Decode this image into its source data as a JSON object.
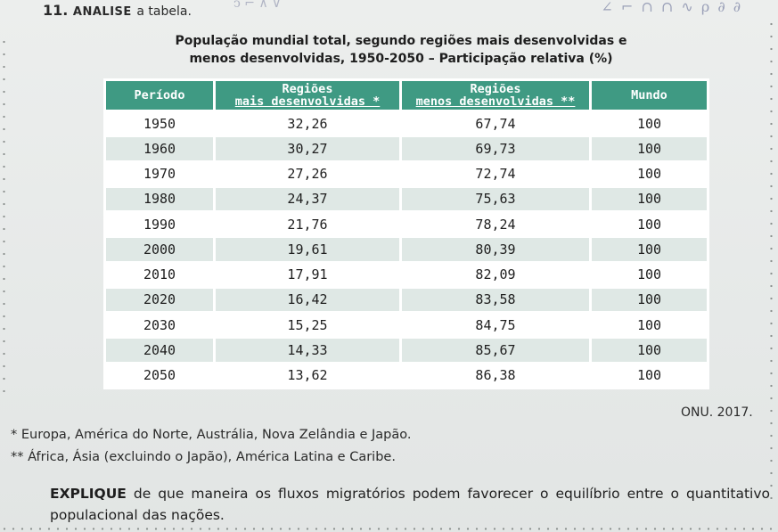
{
  "question": {
    "number": "11.",
    "verb": "ANALISE",
    "rest": "a tabela."
  },
  "table": {
    "title_line1": "População mundial total, segundo regiões mais desenvolvidas e",
    "title_line2": "menos desenvolvidas, 1950-2050 – Participação relativa (%)",
    "headers": {
      "period": "Período",
      "dev_top": "Regiões",
      "dev_bottom": "mais desenvolvidas *",
      "less_top": "Regiões",
      "less_bottom": "menos desenvolvidas **",
      "world": "Mundo"
    },
    "rows": [
      {
        "period": "1950",
        "dev": "32,26",
        "less": "67,74",
        "world": "100"
      },
      {
        "period": "1960",
        "dev": "30,27",
        "less": "69,73",
        "world": "100"
      },
      {
        "period": "1970",
        "dev": "27,26",
        "less": "72,74",
        "world": "100"
      },
      {
        "period": "1980",
        "dev": "24,37",
        "less": "75,63",
        "world": "100"
      },
      {
        "period": "1990",
        "dev": "21,76",
        "less": "78,24",
        "world": "100"
      },
      {
        "period": "2000",
        "dev": "19,61",
        "less": "80,39",
        "world": "100"
      },
      {
        "period": "2010",
        "dev": "17,91",
        "less": "82,09",
        "world": "100"
      },
      {
        "period": "2020",
        "dev": "16,42",
        "less": "83,58",
        "world": "100"
      },
      {
        "period": "2030",
        "dev": "15,25",
        "less": "84,75",
        "world": "100"
      },
      {
        "period": "2040",
        "dev": "14,33",
        "less": "85,67",
        "world": "100"
      },
      {
        "period": "2050",
        "dev": "13,62",
        "less": "86,38",
        "world": "100"
      }
    ],
    "source": "ONU. 2017."
  },
  "notes": {
    "note1": "* Europa, América do Norte, Austrália, Nova Zelândia e Japão.",
    "note2": "** África, Ásia (excluindo o Japão), América Latina e Caribe."
  },
  "prompt": {
    "verb": "EXPLIQUE",
    "text": " de que maneira os fluxos migratórios podem favorecer o equilíbrio entre o quantitativo populacional das nações."
  },
  "colors": {
    "header_bg": "#3f9a83",
    "row_alt_bg": "#dfe8e5"
  }
}
